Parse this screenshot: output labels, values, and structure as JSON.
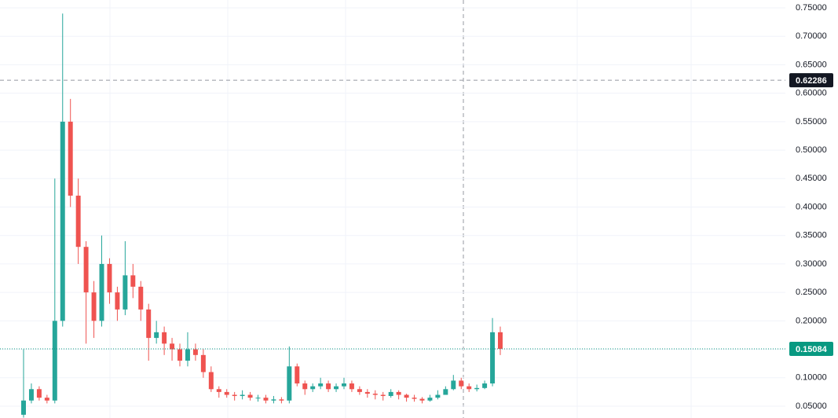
{
  "chart_data": {
    "type": "candlestick",
    "ylim": [
      0.0293,
      0.7638
    ],
    "yticks": [
      {
        "value": 0.05,
        "label": "0.05000"
      },
      {
        "value": 0.1,
        "label": "0.10000"
      },
      {
        "value": 0.15,
        "label": "0.15000"
      },
      {
        "value": 0.2,
        "label": "0.20000"
      },
      {
        "value": 0.25,
        "label": "0.25000"
      },
      {
        "value": 0.3,
        "label": "0.30000"
      },
      {
        "value": 0.35,
        "label": "0.35000"
      },
      {
        "value": 0.4,
        "label": "0.40000"
      },
      {
        "value": 0.45,
        "label": "0.45000"
      },
      {
        "value": 0.5,
        "label": "0.50000"
      },
      {
        "value": 0.55,
        "label": "0.55000"
      },
      {
        "value": 0.6,
        "label": "0.60000"
      },
      {
        "value": 0.65,
        "label": "0.65000"
      },
      {
        "value": 0.7,
        "label": "0.70000"
      },
      {
        "value": 0.75,
        "label": "0.75000"
      }
    ],
    "grid": true,
    "up_color": "#26a69a",
    "down_color": "#ef5350",
    "open": [
      0.035,
      0.06,
      0.08,
      0.065,
      0.06,
      0.2,
      0.55,
      0.42,
      0.33,
      0.25,
      0.2,
      0.3,
      0.25,
      0.22,
      0.28,
      0.26,
      0.22,
      0.17,
      0.18,
      0.16,
      0.15,
      0.13,
      0.15,
      0.14,
      0.11,
      0.08,
      0.075,
      0.07,
      0.068,
      0.07,
      0.065,
      0.065,
      0.06,
      0.062,
      0.06,
      0.12,
      0.09,
      0.08,
      0.085,
      0.09,
      0.08,
      0.085,
      0.09,
      0.08,
      0.075,
      0.072,
      0.07,
      0.068,
      0.075,
      0.07,
      0.065,
      0.063,
      0.06,
      0.065,
      0.07,
      0.08,
      0.095,
      0.085,
      0.08,
      0.082,
      0.09,
      0.18
    ],
    "high": [
      0.15,
      0.09,
      0.085,
      0.07,
      0.45,
      0.74,
      0.59,
      0.45,
      0.34,
      0.27,
      0.35,
      0.31,
      0.26,
      0.34,
      0.3,
      0.27,
      0.23,
      0.2,
      0.19,
      0.17,
      0.16,
      0.18,
      0.16,
      0.15,
      0.12,
      0.085,
      0.08,
      0.075,
      0.078,
      0.075,
      0.07,
      0.07,
      0.068,
      0.066,
      0.155,
      0.125,
      0.095,
      0.09,
      0.1,
      0.095,
      0.09,
      0.1,
      0.095,
      0.085,
      0.08,
      0.078,
      0.075,
      0.08,
      0.078,
      0.072,
      0.07,
      0.066,
      0.07,
      0.078,
      0.085,
      0.105,
      0.1,
      0.09,
      0.088,
      0.095,
      0.205,
      0.19
    ],
    "low": [
      0.03,
      0.055,
      0.06,
      0.055,
      0.055,
      0.19,
      0.4,
      0.3,
      0.16,
      0.17,
      0.19,
      0.23,
      0.2,
      0.21,
      0.24,
      0.2,
      0.13,
      0.16,
      0.14,
      0.13,
      0.12,
      0.12,
      0.13,
      0.1,
      0.075,
      0.065,
      0.065,
      0.06,
      0.062,
      0.06,
      0.058,
      0.055,
      0.055,
      0.055,
      0.055,
      0.085,
      0.07,
      0.075,
      0.08,
      0.075,
      0.075,
      0.08,
      0.075,
      0.07,
      0.065,
      0.062,
      0.06,
      0.065,
      0.062,
      0.058,
      0.058,
      0.055,
      0.058,
      0.062,
      0.07,
      0.078,
      0.08,
      0.075,
      0.076,
      0.08,
      0.085,
      0.14
    ],
    "close": [
      0.06,
      0.08,
      0.065,
      0.06,
      0.2,
      0.55,
      0.42,
      0.33,
      0.25,
      0.2,
      0.3,
      0.25,
      0.22,
      0.28,
      0.26,
      0.22,
      0.17,
      0.18,
      0.16,
      0.15,
      0.13,
      0.15,
      0.14,
      0.11,
      0.08,
      0.075,
      0.07,
      0.068,
      0.07,
      0.065,
      0.065,
      0.06,
      0.062,
      0.06,
      0.12,
      0.09,
      0.08,
      0.085,
      0.09,
      0.08,
      0.085,
      0.09,
      0.08,
      0.075,
      0.072,
      0.07,
      0.068,
      0.075,
      0.07,
      0.065,
      0.063,
      0.06,
      0.065,
      0.07,
      0.08,
      0.095,
      0.085,
      0.08,
      0.082,
      0.09,
      0.18,
      0.15084
    ],
    "crosshair_price": 0.62286,
    "last_price": 0.15084
  }
}
